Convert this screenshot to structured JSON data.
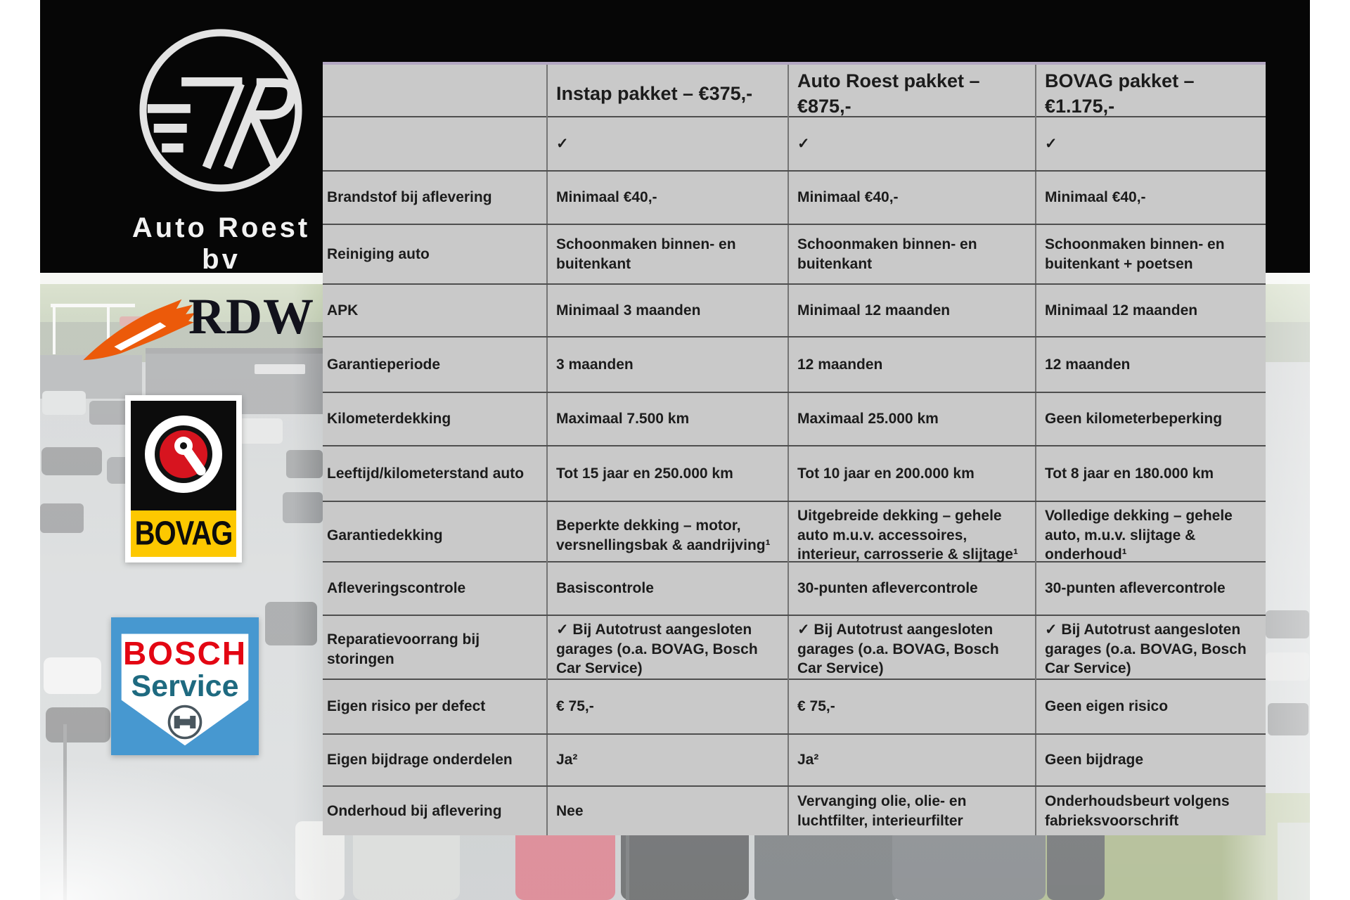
{
  "branding": {
    "company": "Auto Roest bv",
    "rdw_label": "RDW",
    "bovag_label": "BOVAG",
    "bosch_label": "BOSCH",
    "bosch_service_label": "Service"
  },
  "table": {
    "columns": [
      "Instap pakket – €375,-",
      "Auto Roest pakket – €875,-",
      "BOVAG pakket – €1.175,-"
    ],
    "rows": [
      {
        "label": "",
        "cells": [
          "✓",
          "✓",
          "✓"
        ]
      },
      {
        "label": "Brandstof bij aflevering",
        "cells": [
          "Minimaal €40,-",
          "Minimaal €40,-",
          "Minimaal €40,-"
        ]
      },
      {
        "label": "Reiniging auto",
        "cells": [
          "Schoonmaken binnen- en buitenkant",
          "Schoonmaken binnen- en buitenkant",
          "Schoonmaken binnen- en buitenkant + poetsen"
        ]
      },
      {
        "label": "APK",
        "cells": [
          "Minimaal 3 maanden",
          "Minimaal 12 maanden",
          "Minimaal 12 maanden"
        ]
      },
      {
        "label": "Garantieperiode",
        "cells": [
          "3 maanden",
          "12 maanden",
          "12 maanden"
        ]
      },
      {
        "label": "Kilometerdekking",
        "cells": [
          "Maximaal 7.500 km",
          "Maximaal 25.000 km",
          "Geen kilometerbeperking"
        ]
      },
      {
        "label": "Leeftijd/kilometerstand auto",
        "cells": [
          "Tot 15 jaar en 250.000 km",
          "Tot 10 jaar en 200.000 km",
          "Tot 8 jaar en 180.000 km"
        ]
      },
      {
        "label": "Garantiedekking",
        "cells": [
          "Beperkte dekking – motor, versnellingsbak & aandrijving¹",
          "Uitgebreide dekking – gehele auto m.u.v. accessoires, interieur, carrosserie & slijtage¹",
          "Volledige dekking – gehele auto, m.u.v. slijtage & onderhoud¹"
        ]
      },
      {
        "label": "Afleveringscontrole",
        "cells": [
          "Basiscontrole",
          "30-punten aflevercontrole",
          "30-punten aflevercontrole"
        ]
      },
      {
        "label": "Reparatievoorrang bij storingen",
        "cells": [
          "✓ Bij Autotrust aangesloten garages (o.a. BOVAG, Bosch Car Service)",
          "✓ Bij Autotrust aangesloten garages (o.a. BOVAG, Bosch Car Service)",
          "✓ Bij Autotrust aangesloten garages (o.a. BOVAG, Bosch Car Service)"
        ]
      },
      {
        "label": "Eigen risico per defect",
        "cells": [
          "€ 75,-",
          "€ 75,-",
          "Geen eigen risico"
        ]
      },
      {
        "label": "Eigen bijdrage onderdelen",
        "cells": [
          "Ja²",
          "Ja²",
          "Geen bijdrage"
        ]
      },
      {
        "label": "Onderhoud bij aflevering",
        "cells": [
          "Nee",
          "Vervanging olie, olie- en luchtfilter, interieurfilter",
          "Onderhoudsbeurt volgens fabrieksvoorschrift"
        ]
      }
    ]
  },
  "colors": {
    "table_background": "#c9c9c9",
    "table_top_border": "#b3a7c2",
    "grid_line_horizontal": "#4e4e4e",
    "grid_line_vertical": "#757575",
    "rdw_orange": "#EC5A0A",
    "bovag_yellow": "#FDC800",
    "bovag_red": "#D7141F",
    "bosch_red": "#E30613",
    "bosch_blue": "#4798D0",
    "bosch_service_teal": "#1E6A80"
  }
}
